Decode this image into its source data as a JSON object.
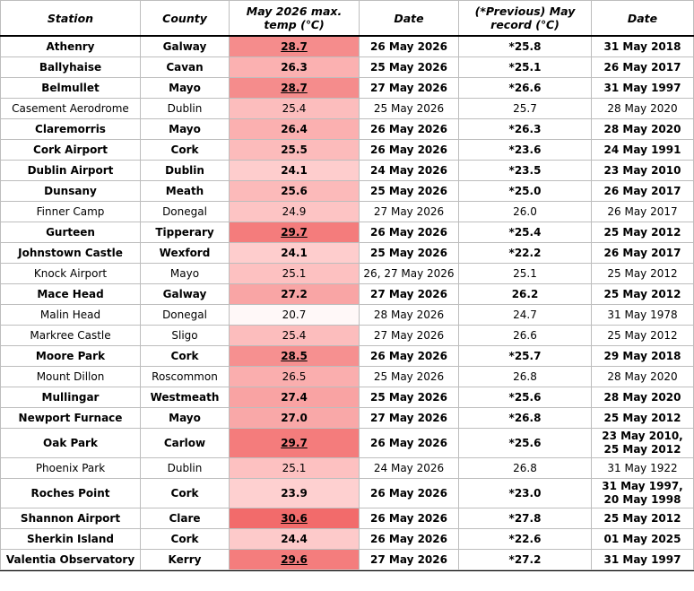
{
  "table": {
    "header": [
      "Station",
      "County",
      "May 2026 max. temp (℃)",
      "Date",
      "(*Previous) May record (℃)",
      "Date"
    ],
    "rows": [
      {
        "cells": [
          "Athenry",
          "Galway",
          "28.7",
          "26 May 2026",
          "*25.8",
          "31 May 2018"
        ],
        "bold": true,
        "underline": true,
        "fill": "#f58c8c"
      },
      {
        "cells": [
          "Ballyhaise",
          "Cavan",
          "26.3",
          "25 May 2026",
          "*25.1",
          "26 May 2017"
        ],
        "bold": true,
        "underline": false,
        "fill": "#fbb1b1"
      },
      {
        "cells": [
          "Belmullet",
          "Mayo",
          "28.7",
          "27 May 2026",
          "*26.6",
          "31 May 1997"
        ],
        "bold": true,
        "underline": true,
        "fill": "#f58c8c"
      },
      {
        "cells": [
          "Casement Aerodrome",
          "Dublin",
          "25.4",
          "25 May 2026",
          "25.7",
          "28 May 2020"
        ],
        "bold": false,
        "underline": false,
        "fill": "#fcbdbd"
      },
      {
        "cells": [
          "Claremorris",
          "Mayo",
          "26.4",
          "26 May 2026",
          "*26.3",
          "28 May 2020"
        ],
        "bold": true,
        "underline": false,
        "fill": "#fbb0b0"
      },
      {
        "cells": [
          "Cork Airport",
          "Cork",
          "25.5",
          "26 May 2026",
          "*23.6",
          "24 May 1991"
        ],
        "bold": true,
        "underline": false,
        "fill": "#fcbbbb"
      },
      {
        "cells": [
          "Dublin Airport",
          "Dublin",
          "24.1",
          "24 May 2026",
          "*23.5",
          "23 May 2010"
        ],
        "bold": true,
        "underline": false,
        "fill": "#fecdcd"
      },
      {
        "cells": [
          "Dunsany",
          "Meath",
          "25.6",
          "25 May 2026",
          "*25.0",
          "26 May 2017"
        ],
        "bold": true,
        "underline": false,
        "fill": "#fcbaba"
      },
      {
        "cells": [
          "Finner Camp",
          "Donegal",
          "24.9",
          "27 May 2026",
          "26.0",
          "26 May 2017"
        ],
        "bold": false,
        "underline": false,
        "fill": "#fdc4c4"
      },
      {
        "cells": [
          "Gurteen",
          "Tipperary",
          "29.7",
          "26 May 2026",
          "*25.4",
          "25 May 2012"
        ],
        "bold": true,
        "underline": true,
        "fill": "#f47c7c"
      },
      {
        "cells": [
          "Johnstown Castle",
          "Wexford",
          "24.1",
          "25 May 2026",
          "*22.2",
          "26 May 2017"
        ],
        "bold": true,
        "underline": false,
        "fill": "#fecdcd"
      },
      {
        "cells": [
          "Knock Airport",
          "Mayo",
          "25.1",
          "26, 27 May 2026",
          "25.1",
          "25 May 2012"
        ],
        "bold": false,
        "underline": false,
        "fill": "#fdc1c1"
      },
      {
        "cells": [
          "Mace Head",
          "Galway",
          "27.2",
          "27 May 2026",
          "26.2",
          "25 May 2012"
        ],
        "bold": true,
        "underline": false,
        "fill": "#f9a5a5"
      },
      {
        "cells": [
          "Malin Head",
          "Donegal",
          "20.7",
          "28 May 2026",
          "24.7",
          "31 May 1978"
        ],
        "bold": false,
        "underline": false,
        "fill": "#fff8f8"
      },
      {
        "cells": [
          "Markree Castle",
          "Sligo",
          "25.4",
          "27 May 2026",
          "26.6",
          "25 May 2012"
        ],
        "bold": false,
        "underline": false,
        "fill": "#fcbdbd"
      },
      {
        "cells": [
          "Moore Park",
          "Cork",
          "28.5",
          "26 May 2026",
          "*25.7",
          "29 May 2018"
        ],
        "bold": true,
        "underline": true,
        "fill": "#f69090"
      },
      {
        "cells": [
          "Mount Dillon",
          "Roscommon",
          "26.5",
          "25 May 2026",
          "26.8",
          "28 May 2020"
        ],
        "bold": false,
        "underline": false,
        "fill": "#faaeae"
      },
      {
        "cells": [
          "Mullingar",
          "Westmeath",
          "27.4",
          "25 May 2026",
          "*25.6",
          "28 May 2020"
        ],
        "bold": true,
        "underline": false,
        "fill": "#f9a3a3"
      },
      {
        "cells": [
          "Newport Furnace",
          "Mayo",
          "27.0",
          "27 May 2026",
          "*26.8",
          "25 May 2012"
        ],
        "bold": true,
        "underline": false,
        "fill": "#f9a8a8"
      },
      {
        "cells": [
          "Oak Park",
          "Carlow",
          "29.7",
          "26 May 2026",
          "*25.6",
          "23 May 2010, 25 May 2012"
        ],
        "bold": true,
        "underline": true,
        "fill": "#f47c7c"
      },
      {
        "cells": [
          "Phoenix Park",
          "Dublin",
          "25.1",
          "24 May 2026",
          "26.8",
          "31 May 1922"
        ],
        "bold": false,
        "underline": false,
        "fill": "#fdc1c1"
      },
      {
        "cells": [
          "Roches Point",
          "Cork",
          "23.9",
          "26 May 2026",
          "*23.0",
          "31 May 1997, 20 May 1998"
        ],
        "bold": true,
        "underline": false,
        "fill": "#fed0d0"
      },
      {
        "cells": [
          "Shannon Airport",
          "Clare",
          "30.6",
          "26 May 2026",
          "*27.8",
          "25 May 2012"
        ],
        "bold": true,
        "underline": true,
        "fill": "#f26b6b"
      },
      {
        "cells": [
          "Sherkin Island",
          "Cork",
          "24.4",
          "26 May 2026",
          "*22.6",
          "01 May 2025"
        ],
        "bold": true,
        "underline": false,
        "fill": "#fdcaca"
      },
      {
        "cells": [
          "Valentia Observatory",
          "Kerry",
          "29.6",
          "27 May 2026",
          "*27.2",
          "31 May 1997"
        ],
        "bold": true,
        "underline": true,
        "fill": "#f47d7d"
      }
    ]
  }
}
